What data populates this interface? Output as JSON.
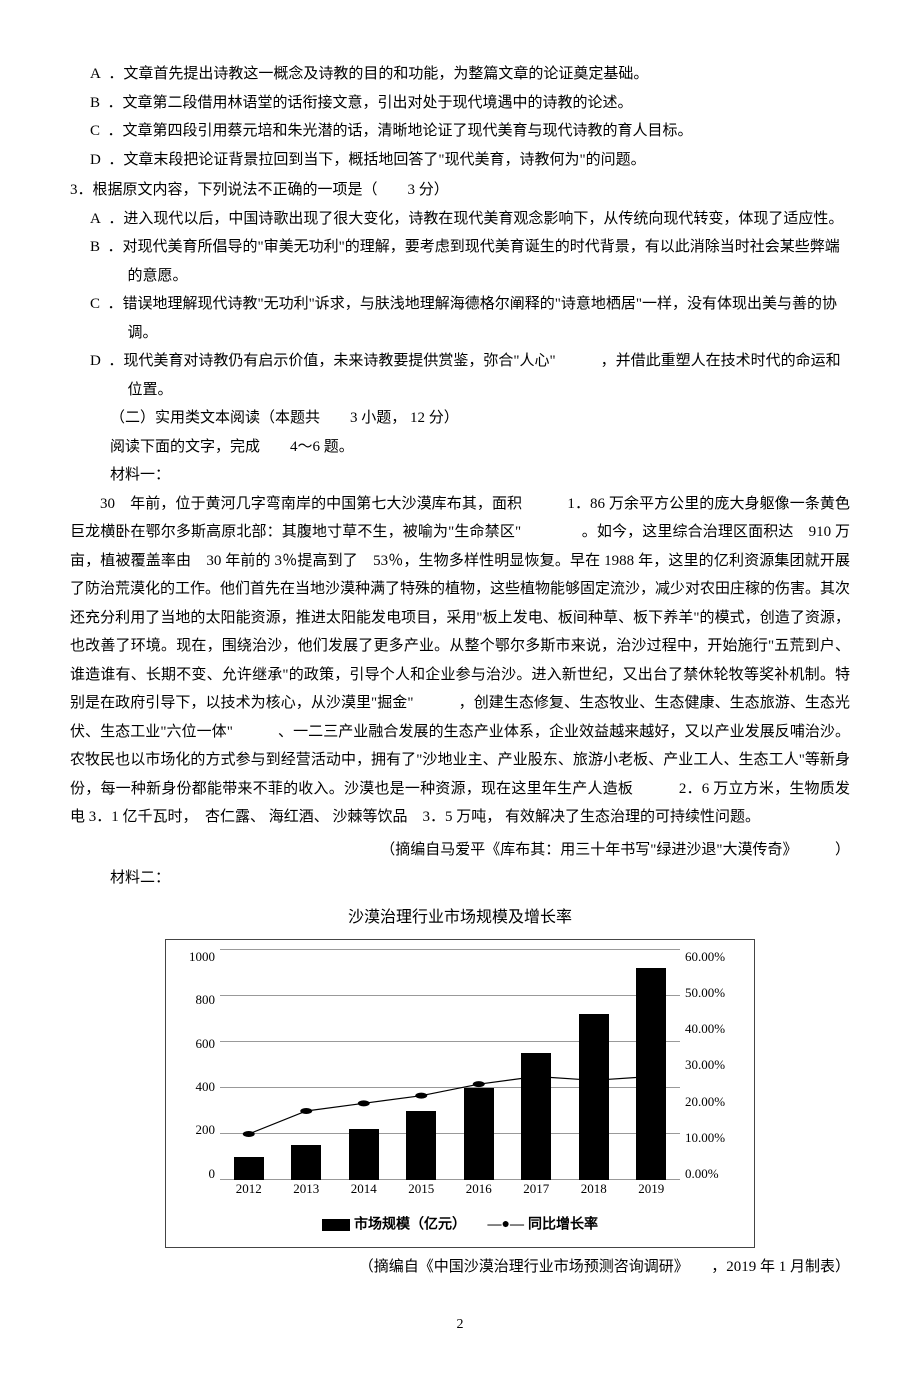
{
  "q1_options": {
    "A": "．文章首先提出诗教这一概念及诗教的目的和功能，为整篇文章的论证奠定基础。",
    "B": "．文章第二段借用林语堂的话衔接文意，引出对处于现代境遇中的诗教的论述。",
    "C": "．文章第四段引用蔡元培和朱光潜的话，清晰地论证了现代美育与现代诗教的育人目标。",
    "D": "．文章末段把论证背景拉回到当下，概括地回答了\"现代美育，诗教何为\"的问题。"
  },
  "q3": {
    "stem": "3．根据原文内容，下列说法不正确的一项是（　　3 分）",
    "options": {
      "A": "．进入现代以后，中国诗歌出现了很大变化，诗教在现代美育观念影响下，从传统向现代转变，体现了适应性。",
      "B": "．对现代美育所倡导的\"审美无功利\"的理解，要考虑到现代美育诞生的时代背景，有以此消除当时社会某些弊端的意愿。",
      "C": "．错误地理解现代诗教\"无功利\"诉求，与肤浅地理解海德格尔阐释的\"诗意地栖居\"一样，没有体现出美与善的协调。",
      "D": "．现代美育对诗教仍有启示价值，未来诗教要提供赏鉴，弥合\"人心\"　　　，并借此重塑人在技术时代的命运和位置。"
    }
  },
  "section2": {
    "head": "（二）实用类文本阅读（本题共　　3 小题， 12 分）",
    "instr": "阅读下面的文字，完成　　4～6 题。",
    "mat1_label": "材料一：",
    "mat1_para": "30　年前，位于黄河几字弯南岸的中国第七大沙漠库布其，面积　　　1．86 万余平方公里的庞大身躯像一条黄色巨龙横卧在鄂尔多斯高原北部：其腹地寸草不生，被喻为\"生命禁区\"　　　　。如今，这里综合治理区面积达　910 万亩，植被覆盖率由　30 年前的 3％提高到了　53％，生物多样性明显恢复。早在 1988 年，这里的亿利资源集团就开展了防治荒漠化的工作。他们首先在当地沙漠种满了特殊的植物，这些植物能够固定流沙，减少对农田庄稼的伤害。其次还充分利用了当地的太阳能资源，推进太阳能发电项目，采用\"板上发电、板间种草、板下养羊\"的模式，创造了资源，也改善了环境。现在，围绕治沙，他们发展了更多产业。从整个鄂尔多斯市来说，治沙过程中，开始施行\"五荒到户、谁造谁有、长期不变、允许继承\"的政策，引导个人和企业参与治沙。进入新世纪，又出台了禁休轮牧等奖补机制。特别是在政府引导下，以技术为核心，从沙漠里\"掘金\"　　　，创建生态修复、生态牧业、生态健康、生态旅游、生态光伏、生态工业\"六位一体\"　　　、一二三产业融合发展的生态产业体系，企业效益越来越好，又以产业发展反哺治沙。农牧民也以市场化的方式参与到经营活动中，拥有了\"沙地业主、产业股东、旅游小老板、产业工人、生态工人\"等新身份，每一种新身份都能带来不菲的收入。沙漠也是一种资源，现在这里年生产人造板　　　2．6 万立方米，生物质发电 3．1 亿千瓦时，　杏仁露、 海红酒、 沙棘等饮品　3．5 万吨， 有效解决了生态治理的可持续性问题。",
    "mat1_source": "（摘编自马爱平《库布其：用三十年书写\"绿进沙退\"大漠传奇》　　　）",
    "mat2_label": "材料二："
  },
  "chart": {
    "title": "沙漠治理行业市场规模及增长率",
    "years": [
      "2012",
      "2013",
      "2014",
      "2015",
      "2016",
      "2017",
      "2018",
      "2019"
    ],
    "bars_pct_of_max": [
      10,
      15,
      22,
      30,
      40,
      55,
      72,
      92
    ],
    "line_pct": [
      12,
      18,
      20,
      22,
      25,
      27,
      26,
      27
    ],
    "y1_ticks": [
      "0",
      "200",
      "400",
      "600",
      "800",
      "1000"
    ],
    "y2_ticks": [
      "0.00%",
      "10.00%",
      "20.00%",
      "30.00%",
      "40.00%",
      "50.00%",
      "60.00%"
    ],
    "legend_bar": "市场规模（亿元）",
    "legend_line": "同比增长率",
    "source": "（摘编自《中国沙漠治理行业市场预测咨询调研》　　，2019 年 1 月制表）",
    "bar_color": "#000000",
    "grid_color": "#999999",
    "line_color": "#000000"
  },
  "page_number": "2"
}
